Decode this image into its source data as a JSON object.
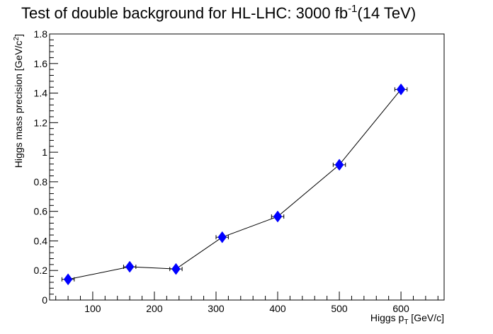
{
  "chart_data": {
    "type": "scatter",
    "title_main": "Test of double background for HL-LHC: 3000 fb",
    "title_sup": "-1",
    "title_tail": "(14 TeV)",
    "xlabel_pre": "Higgs p",
    "xlabel_sub": "T",
    "xlabel_post": " [GeV/c]",
    "ylabel_pre": "Higgs mass precision [GeV/c",
    "ylabel_sup": "2",
    "ylabel_post": "]",
    "xlim": [
      30,
      670
    ],
    "ylim": [
      0,
      1.8
    ],
    "x_ticks": [
      {
        "value": 100,
        "label": "100"
      },
      {
        "value": 200,
        "label": "200"
      },
      {
        "value": 300,
        "label": "300"
      },
      {
        "value": 400,
        "label": "400"
      },
      {
        "value": 500,
        "label": "500"
      },
      {
        "value": 600,
        "label": "600"
      }
    ],
    "y_ticks": [
      {
        "value": 0,
        "label": "0"
      },
      {
        "value": 0.2,
        "label": "0.2"
      },
      {
        "value": 0.4,
        "label": "0.4"
      },
      {
        "value": 0.6,
        "label": "0.6"
      },
      {
        "value": 0.8,
        "label": "0.8"
      },
      {
        "value": 1.0,
        "label": "1"
      },
      {
        "value": 1.2,
        "label": "1.2"
      },
      {
        "value": 1.4,
        "label": "1.4"
      },
      {
        "value": 1.6,
        "label": "1.6"
      },
      {
        "value": 1.8,
        "label": "1.8"
      }
    ],
    "series": [
      {
        "x": [
          60,
          160,
          235,
          310,
          400,
          500,
          600
        ],
        "x_err": [
          10,
          10,
          10,
          10,
          10,
          10,
          10
        ],
        "y": [
          0.14,
          0.225,
          0.21,
          0.425,
          0.565,
          0.915,
          1.425
        ]
      }
    ],
    "grid": false,
    "marker_color": "#0000ff",
    "line_color": "#000000"
  }
}
